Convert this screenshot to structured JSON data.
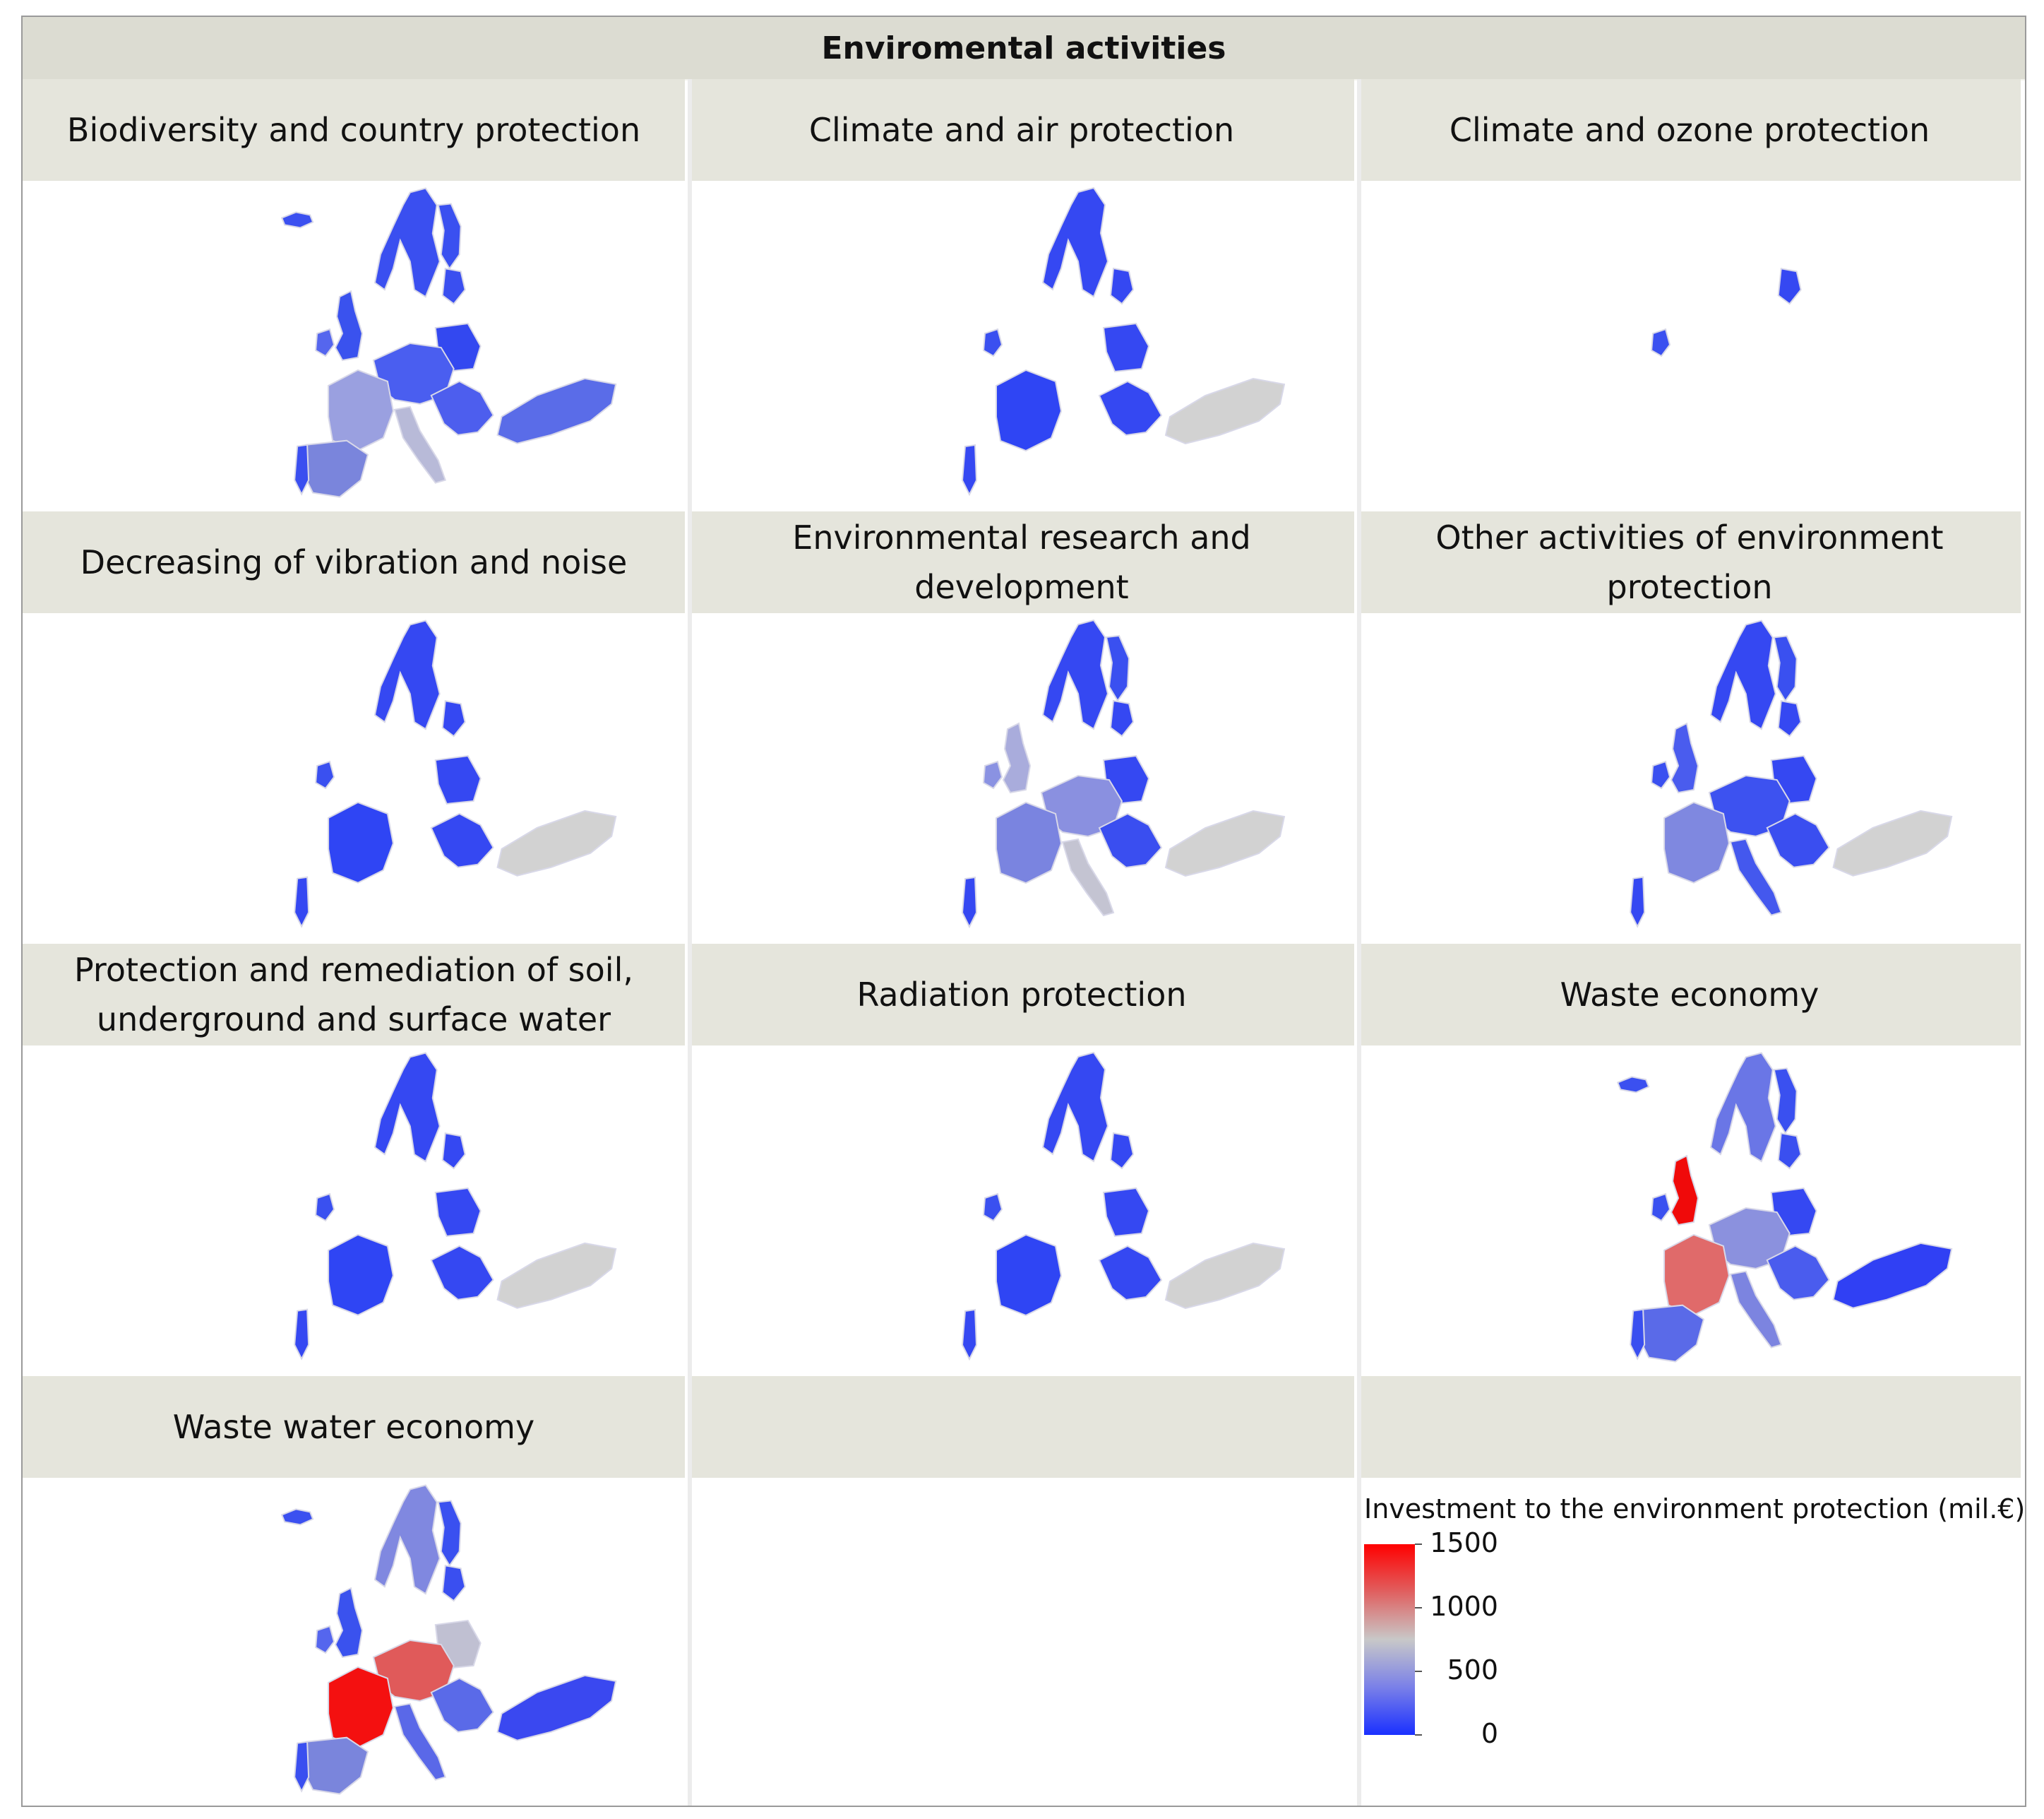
{
  "title": "Enviromental activities",
  "panels": [
    {
      "label": "Biodiversity and country protection",
      "fills": {
        "scandi": "#3a4ff0",
        "uk": "#3a52ee",
        "ireland": "#5566ee",
        "france": "#9aa0e0",
        "iberia": "#7a85dc",
        "central": "#4a5ef0",
        "italy": "#b8bad8",
        "balkans": "#4d5eee",
        "poland": "#3348f0",
        "baltics": "#3a4ff0",
        "finland": "#3a50f0",
        "turkey": "#5a6ce8",
        "iceland": "#3b50f0",
        "portugal": "#3a4ff0"
      }
    },
    {
      "label": "Climate and air protection",
      "fills": {
        "scandi": "#3548f2",
        "uk": "none",
        "ireland": "#3a50f0",
        "france": "#2f45f4",
        "iberia": "none",
        "central": "none",
        "italy": "none",
        "balkans": "#3548f2",
        "poland": "#3548f2",
        "baltics": "#3548f2",
        "finland": "none",
        "turkey": "#d2d2d2",
        "iceland": "none",
        "portugal": "#3548f2"
      }
    },
    {
      "label": "Climate and ozone protection",
      "fills": {
        "scandi": "none",
        "uk": "none",
        "ireland": "#3a50f0",
        "france": "none",
        "iberia": "none",
        "central": "none",
        "italy": "none",
        "balkans": "none",
        "poland": "none",
        "baltics": "#3548f2",
        "finland": "none",
        "turkey": "none",
        "iceland": "none",
        "portugal": "none"
      }
    },
    {
      "label": "Decreasing of vibration and noise",
      "fills": {
        "scandi": "#3548f2",
        "uk": "none",
        "ireland": "#3a50f0",
        "france": "#2f45f4",
        "iberia": "none",
        "central": "none",
        "italy": "none",
        "balkans": "#3548f2",
        "poland": "#3548f2",
        "baltics": "#3548f2",
        "finland": "none",
        "turkey": "#d2d2d2",
        "iceland": "none",
        "portugal": "#3548f2"
      }
    },
    {
      "label": "Environmental research and development",
      "fills": {
        "scandi": "#3548f2",
        "uk": "#a9acdc",
        "ireland": "#8a92e2",
        "france": "#7a84e0",
        "iberia": "none",
        "central": "#8a90e0",
        "italy": "#c4c4d2",
        "balkans": "#3a4ef0",
        "poland": "#3548f2",
        "baltics": "#3548f2",
        "finland": "#3a50f0",
        "turkey": "#d2d2d2",
        "iceland": "none",
        "portugal": "#3548f2"
      }
    },
    {
      "label": "Other activities of environment protection",
      "fills": {
        "scandi": "#3548f2",
        "uk": "#4a5cee",
        "ireland": "#3a50f0",
        "france": "#7f88e0",
        "iberia": "none",
        "central": "#3d52f0",
        "italy": "#4458ee",
        "balkans": "#3a4ef0",
        "poland": "#3548f2",
        "baltics": "#3548f2",
        "finland": "#3a50f0",
        "turkey": "#d2d2d2",
        "iceland": "none",
        "portugal": "#3548f2"
      }
    },
    {
      "label": "Protection and remediation of soil,\nunderground and surface water",
      "fills": {
        "scandi": "#3548f2",
        "uk": "none",
        "ireland": "#3a50f0",
        "france": "#2f45f4",
        "iberia": "none",
        "central": "none",
        "italy": "none",
        "balkans": "#3548f2",
        "poland": "#3548f2",
        "baltics": "#3548f2",
        "finland": "none",
        "turkey": "#d2d2d2",
        "iceland": "none",
        "portugal": "#3548f2"
      }
    },
    {
      "label": "Radiation protection",
      "fills": {
        "scandi": "#3548f2",
        "uk": "none",
        "ireland": "#3a50f0",
        "france": "#2f45f4",
        "iberia": "none",
        "central": "none",
        "italy": "none",
        "balkans": "#3548f2",
        "poland": "#3548f2",
        "baltics": "#3548f2",
        "finland": "none",
        "turkey": "#d2d2d2",
        "iceland": "none",
        "portugal": "#3548f2"
      }
    },
    {
      "label": "Waste economy",
      "fills": {
        "scandi": "#6a76e6",
        "uk": "#f00a0a",
        "ireland": "#3a50f0",
        "france": "#e06a6a",
        "iberia": "#5a6ae8",
        "central": "#8b91de",
        "italy": "#7c84e0",
        "balkans": "#4a5cee",
        "poland": "#3548f2",
        "baltics": "#3a4ff0",
        "finland": "#3a50f0",
        "turkey": "#3040f4",
        "iceland": "#3b50f0",
        "portugal": "#3a4ff0"
      }
    },
    {
      "label": "Waste water economy",
      "fills": {
        "scandi": "#8088e0",
        "uk": "#3a52ee",
        "ireland": "#5566ee",
        "france": "#f41010",
        "iberia": "#7a85dc",
        "central": "#e05a5a",
        "italy": "#5a68e8",
        "balkans": "#5a6ae8",
        "poland": "#c0c0d2",
        "baltics": "#3a4ff0",
        "finland": "#3a50f0",
        "turkey": "#3a48f0",
        "iceland": "#3b50f0",
        "portugal": "#3a4ff0"
      }
    },
    {
      "label": "",
      "fills": {}
    },
    {
      "label": "",
      "fills": {}
    }
  ],
  "legend": {
    "title": "Investment to the environment protection (mil.€)",
    "ticks": [
      1500,
      1000,
      500,
      0
    ],
    "min": 0,
    "max": 1500,
    "colors": {
      "high": "#ff0000",
      "mid": "#c8c8c8",
      "low": "#1a30ff"
    }
  }
}
